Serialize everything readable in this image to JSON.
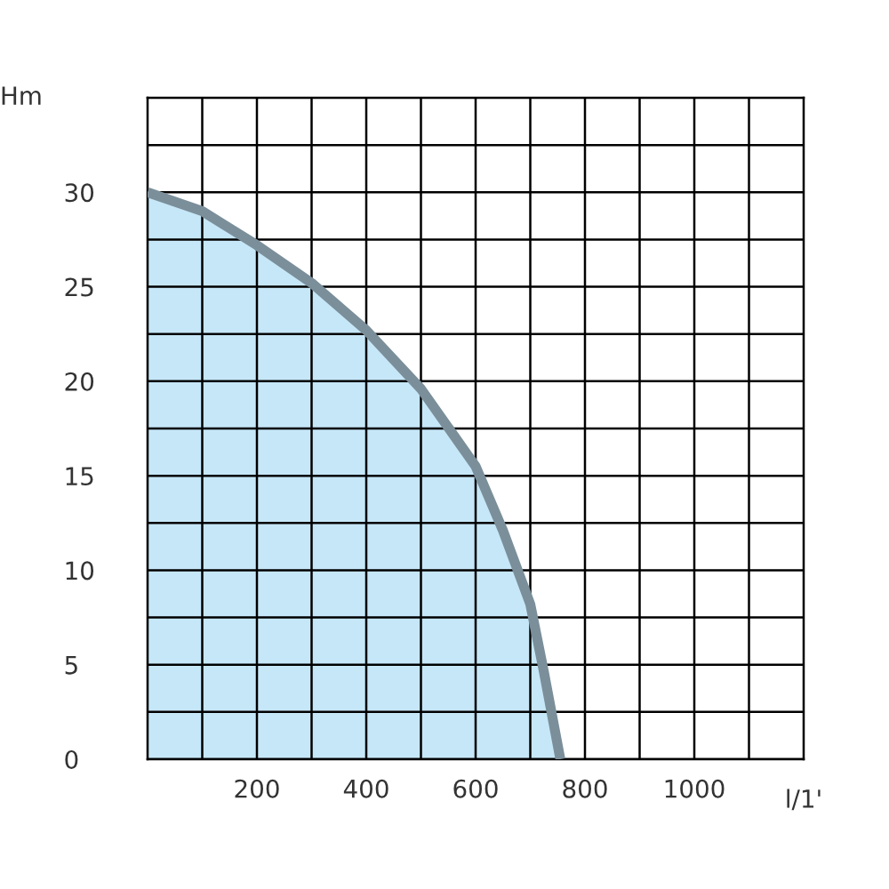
{
  "chart_data": {
    "type": "area",
    "xlabel": "l/1'",
    "ylabel": "Hm",
    "x": [
      0,
      100,
      200,
      300,
      400,
      500,
      600,
      650,
      700,
      725,
      755
    ],
    "series": [
      {
        "color": "#c6e7f8",
        "values": [
          30,
          29.0,
          27.2,
          25.2,
          22.7,
          19.6,
          15.5,
          12.1,
          8.2,
          4.6,
          0
        ]
      }
    ],
    "xlim": [
      0,
      1200
    ],
    "ylim": [
      0,
      35
    ],
    "xticks": [
      {
        "value": 100,
        "label": null
      },
      200,
      {
        "value": 300,
        "label": null
      },
      400,
      {
        "value": 500,
        "label": null
      },
      600,
      {
        "value": 700,
        "label": null
      },
      800,
      {
        "value": 900,
        "label": null
      },
      1000,
      {
        "value": 1100,
        "label": null
      }
    ],
    "yticks": [
      0,
      {
        "value": 2.5,
        "label": null
      },
      5,
      {
        "value": 7.5,
        "label": null
      },
      10,
      {
        "value": 12.5,
        "label": null
      },
      15,
      {
        "value": 17.5,
        "label": null
      },
      20,
      {
        "value": 22.5,
        "label": null
      },
      25,
      {
        "value": 27.5,
        "label": null
      },
      30,
      {
        "value": 32.5,
        "label": null
      }
    ],
    "grid": true
  }
}
